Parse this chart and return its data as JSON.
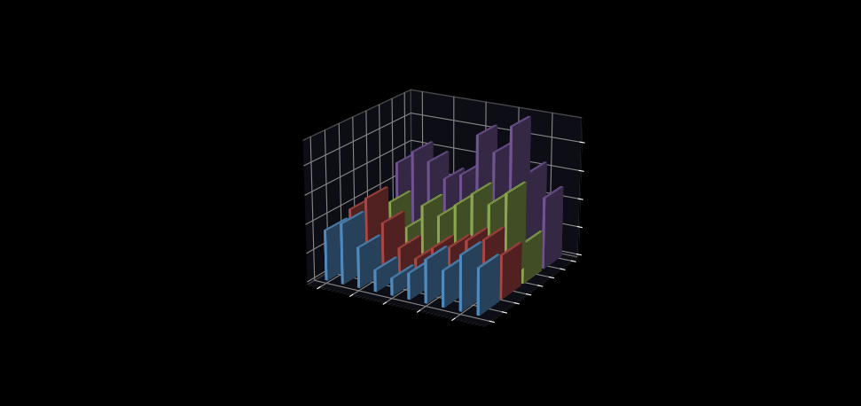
{
  "series_colors": [
    "#5b9bd5",
    "#c0504d",
    "#9bbb59",
    "#7f5fa5"
  ],
  "series_colors_dark": [
    "#4472a8",
    "#963d3a",
    "#76913f",
    "#5c4278"
  ],
  "n_groups": 10,
  "n_series": 4,
  "data": [
    [
      3.5,
      4.2,
      2.8,
      1.5,
      1.2,
      1.8,
      3.0,
      2.5,
      3.8,
      3.2
    ],
    [
      4.0,
      5.0,
      3.5,
      2.0,
      1.5,
      2.5,
      2.8,
      3.5,
      3.8,
      3.0
    ],
    [
      2.5,
      3.8,
      2.2,
      4.0,
      3.5,
      4.5,
      5.5,
      5.0,
      6.0,
      2.8
    ],
    [
      5.5,
      6.5,
      6.0,
      5.0,
      5.5,
      8.5,
      7.5,
      9.5,
      6.5,
      5.0
    ]
  ],
  "background_color": "#000000",
  "pane_color": "#1a1a1a",
  "grid_color": "#888888",
  "bar_width": 0.15,
  "bar_depth": 0.4,
  "elev": 20,
  "azim": -60
}
